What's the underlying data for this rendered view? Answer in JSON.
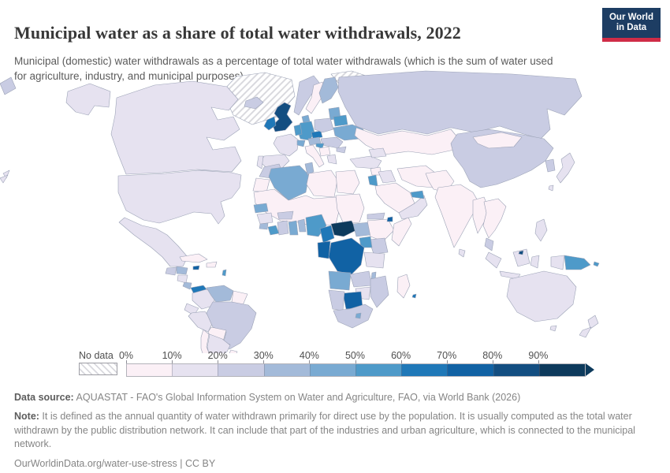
{
  "header": {
    "title": "Municipal water as a share of total water withdrawals, 2022",
    "subtitle": "Municipal (domestic) water withdrawals as a percentage of total water withdrawals (which is the sum of water used for agriculture, industry, and municipal purposes)."
  },
  "logo": {
    "line1": "Our World",
    "line2": "in Data",
    "bg_color": "#1d3d63",
    "accent_color": "#cf2c47"
  },
  "legend": {
    "no_data_label": "No data",
    "tick_labels": [
      "0%",
      "10%",
      "20%",
      "30%",
      "40%",
      "50%",
      "60%",
      "70%",
      "80%",
      "90%"
    ]
  },
  "footer": {
    "data_source_label": "Data source:",
    "data_source_text": " AQUASTAT - FAO's Global Information System on Water and Agriculture, FAO, via World Bank (2026)",
    "note_label": "Note:",
    "note_text": " It is defined as the annual quantity of water withdrawn primarily for direct use by the population. It is usually computed as the total water withdrawn by the public distribution network. It can include that part of the industries and urban agriculture, which is connected to the municipal network.",
    "link_text": "OurWorldinData.org/water-use-stress",
    "separator": " | ",
    "license_text": "CC BY"
  },
  "map_style": {
    "ocean_color": "#ffffff",
    "border_color": "#9ba2b6",
    "hatch_color": "#d9d9de"
  },
  "chart_data": {
    "type": "choropleth",
    "title": "Municipal water as a share of total water withdrawals",
    "year": 2022,
    "unit": "share of total water withdrawals (%)",
    "legend_position": "bottom",
    "bin_edges": [
      0,
      10,
      20,
      30,
      40,
      50,
      60,
      70,
      80,
      90,
      100
    ],
    "bin_colors": [
      "#fbf0f6",
      "#e6e2f0",
      "#c9cce3",
      "#a3bad9",
      "#79aad2",
      "#4e9ac9",
      "#1f78b8",
      "#1162a4",
      "#134e81",
      "#0d3a5c"
    ],
    "no_data_style": "gray-diagonal-hatch",
    "regions": {
      "greenland": "no-data",
      "svalbard": "no-data",
      "united-states": "10-20",
      "canada": "10-20",
      "mexico": "10-20",
      "guatemala": "20-30",
      "honduras": "30-40",
      "nicaragua": "10-20",
      "costa-rica": "30-40",
      "panama": "60-70",
      "cuba": "0-10",
      "jamaica": "70-80",
      "hispaniola": "0-10",
      "lesser-antilles": "50-60",
      "colombia": "10-20",
      "venezuela": "30-40",
      "guyana-suriname": "0-10",
      "ecuador": "10-20",
      "peru": "10-20",
      "brazil": "20-30",
      "bolivia": "0-10",
      "paraguay": "10-20",
      "uruguay": "0-10",
      "chile": "0-10",
      "argentina": "10-20",
      "iceland": "20-30",
      "united-kingdom": "80-90",
      "ireland": "60-70",
      "norway": "20-30",
      "sweden": "0-10",
      "finland": "30-40",
      "denmark": "40-50",
      "baltics": "40-50",
      "france": "10-20",
      "spain": "10-20",
      "portugal": "10-20",
      "germany": "50-60",
      "benelux": "50-60",
      "switzerland": "40-50",
      "czechia": "60-70",
      "austria": "30-40",
      "poland": "20-30",
      "belarus": "50-60",
      "ukraine": "40-50",
      "hungary-romania": "20-30",
      "croatia": "50-60",
      "serbia-bosnia": "0-10",
      "bulgaria": "20-30",
      "greece": "10-20",
      "italy": "0-10",
      "russia": "20-30",
      "kazakhstan-central-asia": "0-10",
      "turkey": "10-20",
      "caucasus": "10-20",
      "syria": "0-10",
      "iraq": "10-20",
      "jordan-israel": "50-60",
      "saudi-arabia": "0-10",
      "yemen-oman": "10-20",
      "uae-qatar": "50-60",
      "iran": "0-10",
      "afghanistan-pakistan": "0-10",
      "india": "0-10",
      "sri-lanka": "10-20",
      "myanmar": "0-10",
      "thailand-indochina": "0-10",
      "malaysia": "20-30",
      "china": "20-30",
      "mongolia": "0-10",
      "korea": "20-30",
      "japan": "10-20",
      "taiwan": "10-20",
      "philippines": "10-20",
      "indonesia": "10-20",
      "brunei": "80-90",
      "papua-new-guinea": "50-60",
      "solomon-islands": "50-60",
      "australia": "10-20",
      "new-zealand": "10-20",
      "fiji": "10-20",
      "morocco": "20-30",
      "western-sahara": "0-10",
      "algeria": "40-50",
      "tunisia": "30-40",
      "libya": "0-10",
      "egypt": "0-10",
      "sahel": "0-10",
      "sudan": "0-10",
      "senegal": "40-50",
      "guinea": "10-20",
      "sierra-leone": "30-40",
      "liberia": "50-60",
      "ivory-coast": "20-30",
      "burkina-faso": "20-30",
      "ghana": "40-50",
      "togo-benin": "30-40",
      "nigeria": "50-60",
      "cameroon": "60-70",
      "central-african-republic": "90-100",
      "south-sudan": "30-40",
      "ethiopia": "0-10",
      "eritrea": "20-30",
      "djibouti": "70-80",
      "somalia": "0-10",
      "kenya": "20-30",
      "uganda": "50-60",
      "dr-congo": "70-80",
      "congo-gabon": "70-80",
      "tanzania": "10-20",
      "angola": "40-50",
      "zambia": "20-30",
      "malawi": "30-40",
      "mozambique": "20-30",
      "zimbabwe": "10-20",
      "botswana": "70-80",
      "namibia": "20-30",
      "south-africa": "20-30",
      "lesotho-eswatini": "40-50",
      "madagascar": "0-10",
      "mauritius": "60-70"
    }
  }
}
